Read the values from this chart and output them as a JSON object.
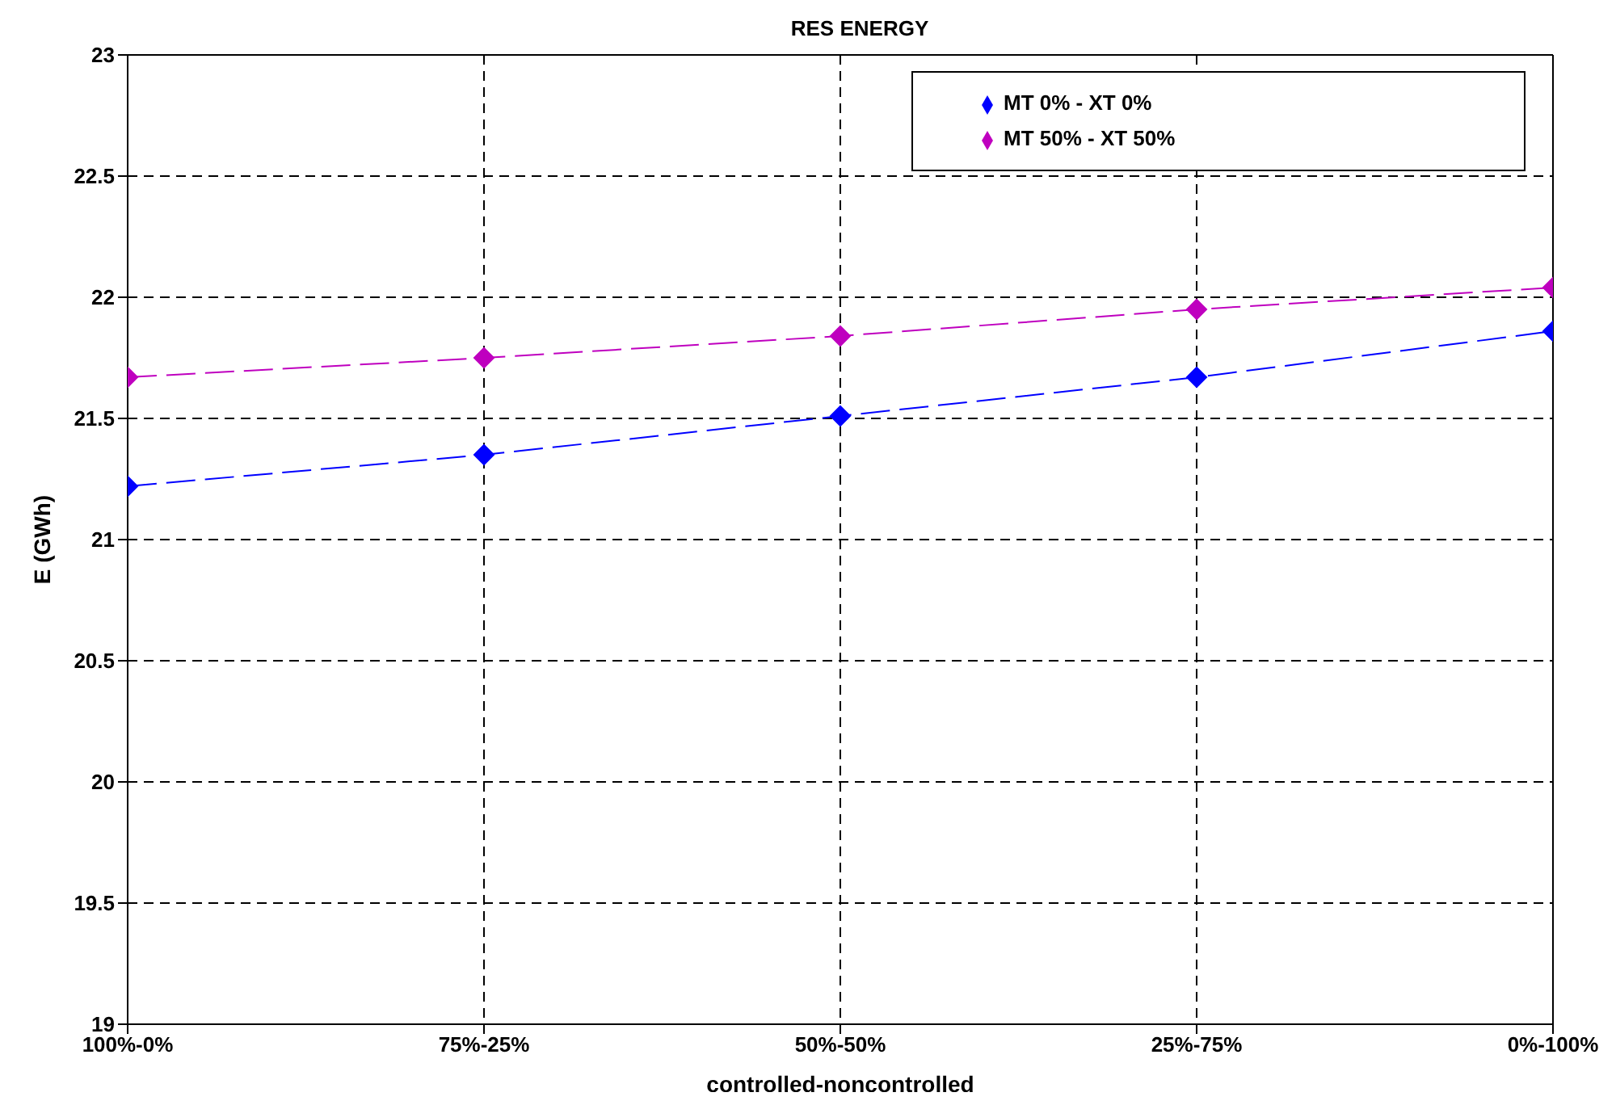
{
  "chart_data": {
    "type": "line",
    "title": "RES ENERGY",
    "xlabel": "controlled-noncontrolled",
    "ylabel": "E (GWh)",
    "categories": [
      "100%-0%",
      "75%-25%",
      "50%-50%",
      "25%-75%",
      "0%-100%"
    ],
    "series": [
      {
        "name": "MT 0% - XT 0%",
        "color": "#0000ff",
        "values": [
          21.22,
          21.35,
          21.51,
          21.67,
          21.86
        ]
      },
      {
        "name": "MT 50% - XT 50%",
        "color": "#bf00bf",
        "values": [
          21.67,
          21.75,
          21.84,
          21.95,
          22.04
        ]
      }
    ],
    "ylim": [
      19,
      23
    ],
    "yticks": [
      19,
      19.5,
      20,
      20.5,
      21,
      21.5,
      22,
      22.5,
      23
    ],
    "grid": true,
    "legend": "top right",
    "marker": "diamond",
    "line_style": "dashed"
  }
}
